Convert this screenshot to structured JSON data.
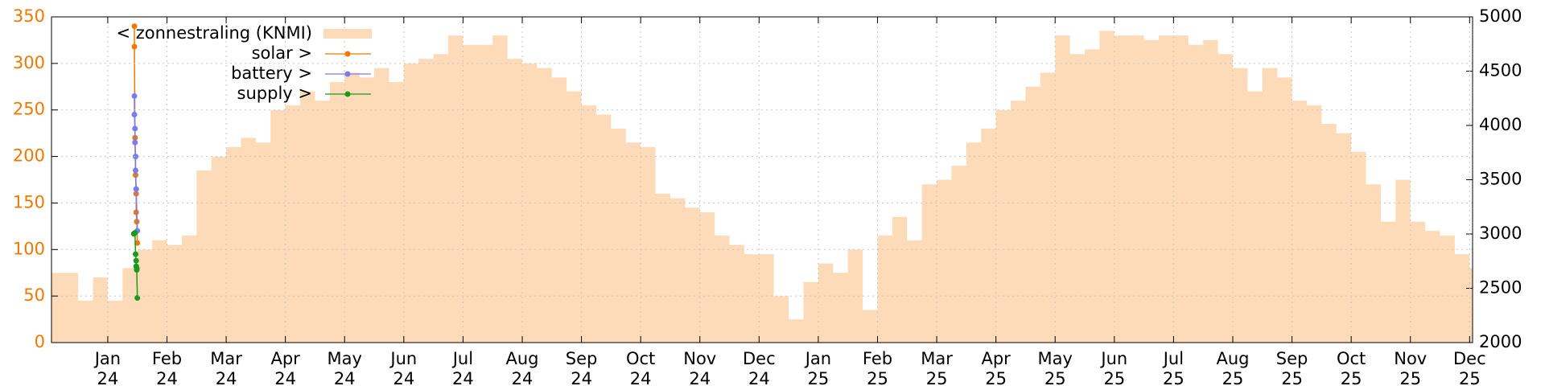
{
  "chart_data": {
    "type": "area",
    "x": [
      -0.95,
      -0.75,
      -0.5,
      -0.25,
      0,
      0.25,
      0.5,
      0.75,
      1,
      1.25,
      1.5,
      1.75,
      2,
      2.25,
      2.5,
      2.75,
      3,
      3.25,
      3.5,
      3.75,
      4,
      4.25,
      4.5,
      4.75,
      5,
      5.25,
      5.5,
      5.75,
      6,
      6.25,
      6.5,
      6.75,
      7,
      7.25,
      7.5,
      7.75,
      8,
      8.25,
      8.5,
      8.75,
      9,
      9.25,
      9.5,
      9.75,
      10,
      10.25,
      10.5,
      10.75,
      11,
      11.25,
      11.5,
      11.75,
      12,
      12.25,
      12.5,
      12.75,
      13,
      13.25,
      13.5,
      13.75,
      14,
      14.25,
      14.5,
      14.75,
      15,
      15.25,
      15.5,
      15.75,
      16,
      16.25,
      16.5,
      16.75,
      17,
      17.25,
      17.5,
      17.75,
      18,
      18.25,
      18.5,
      18.75,
      19,
      19.25,
      19.5,
      19.75,
      20,
      20.25,
      20.5,
      20.75,
      21,
      21.25,
      21.5,
      21.75,
      22,
      22.25,
      22.5,
      22.75,
      23
    ],
    "series": [
      {
        "name": "< zonnestraling (KNMI)",
        "type": "area",
        "color": "#fddbb8",
        "values": [
          75,
          75,
          45,
          70,
          45,
          80,
          100,
          110,
          105,
          115,
          185,
          200,
          210,
          220,
          215,
          250,
          255,
          270,
          260,
          280,
          290,
          285,
          295,
          280,
          300,
          305,
          310,
          330,
          320,
          320,
          330,
          305,
          300,
          295,
          285,
          270,
          255,
          245,
          230,
          215,
          210,
          160,
          155,
          145,
          140,
          115,
          105,
          95,
          95,
          50,
          25,
          65,
          85,
          75,
          100,
          35,
          115,
          135,
          110,
          170,
          175,
          190,
          215,
          230,
          250,
          260,
          275,
          290,
          330,
          310,
          315,
          335,
          330,
          330,
          325,
          330,
          330,
          320,
          325,
          310,
          295,
          270,
          295,
          285,
          260,
          255,
          235,
          225,
          205,
          170,
          130,
          175,
          130,
          120,
          115,
          95,
          80
        ]
      },
      {
        "name": "solar >",
        "type": "scatter",
        "axis": "y2",
        "color": "#f07800",
        "x": [
          0.45,
          0.45,
          0.46,
          0.47,
          0.48,
          0.48,
          0.49,
          0.5
        ],
        "values": [
          4914,
          4726,
          3886,
          3543,
          3371,
          3200,
          3114,
          2917
        ]
      },
      {
        "name": "battery >",
        "type": "scatter",
        "axis": "y2",
        "color": "#7b7bf0",
        "x": [
          0.45,
          0.45,
          0.46,
          0.46,
          0.47,
          0.47,
          0.48,
          0.5
        ],
        "values": [
          4271,
          4100,
          3971,
          3843,
          3714,
          3586,
          3414,
          3029
        ]
      },
      {
        "name": "supply >",
        "type": "scatter",
        "axis": "y2",
        "color": "#1a9a1a",
        "x": [
          0.44,
          0.46,
          0.47,
          0.48,
          0.48,
          0.49,
          0.49,
          0.5
        ],
        "values": [
          3003,
          3011,
          2814,
          2754,
          2703,
          2686,
          2669,
          2411
        ]
      }
    ],
    "xlim": [
      -0.95,
      23.05
    ],
    "xticks": [
      {
        "value": 0,
        "label": [
          "Jan",
          "24"
        ]
      },
      {
        "value": 1,
        "label": [
          "Feb",
          "24"
        ]
      },
      {
        "value": 2,
        "label": [
          "Mar",
          "24"
        ]
      },
      {
        "value": 3,
        "label": [
          "Apr",
          "24"
        ]
      },
      {
        "value": 4,
        "label": [
          "May",
          "24"
        ]
      },
      {
        "value": 5,
        "label": [
          "Jun",
          "24"
        ]
      },
      {
        "value": 6,
        "label": [
          "Jul",
          "24"
        ]
      },
      {
        "value": 7,
        "label": [
          "Aug",
          "24"
        ]
      },
      {
        "value": 8,
        "label": [
          "Sep",
          "24"
        ]
      },
      {
        "value": 9,
        "label": [
          "Oct",
          "24"
        ]
      },
      {
        "value": 10,
        "label": [
          "Nov",
          "24"
        ]
      },
      {
        "value": 11,
        "label": [
          "Dec",
          "24"
        ]
      },
      {
        "value": 12,
        "label": [
          "Jan",
          "25"
        ]
      },
      {
        "value": 13,
        "label": [
          "Feb",
          "25"
        ]
      },
      {
        "value": 14,
        "label": [
          "Mar",
          "25"
        ]
      },
      {
        "value": 15,
        "label": [
          "Apr",
          "25"
        ]
      },
      {
        "value": 16,
        "label": [
          "May",
          "25"
        ]
      },
      {
        "value": 17,
        "label": [
          "Jun",
          "25"
        ]
      },
      {
        "value": 18,
        "label": [
          "Jul",
          "25"
        ]
      },
      {
        "value": 19,
        "label": [
          "Aug",
          "25"
        ]
      },
      {
        "value": 20,
        "label": [
          "Sep",
          "25"
        ]
      },
      {
        "value": 21,
        "label": [
          "Oct",
          "25"
        ]
      },
      {
        "value": 22,
        "label": [
          "Nov",
          "25"
        ]
      },
      {
        "value": 23,
        "label": [
          "Dec",
          "25"
        ]
      }
    ],
    "ylim": [
      0,
      350
    ],
    "yticks": [
      0,
      50,
      100,
      150,
      200,
      250,
      300,
      350
    ],
    "y2lim": [
      2000,
      5000
    ],
    "y2ticks": [
      2000,
      2500,
      3000,
      3500,
      4000,
      4500,
      5000
    ],
    "grid": true,
    "legend": "top left"
  }
}
